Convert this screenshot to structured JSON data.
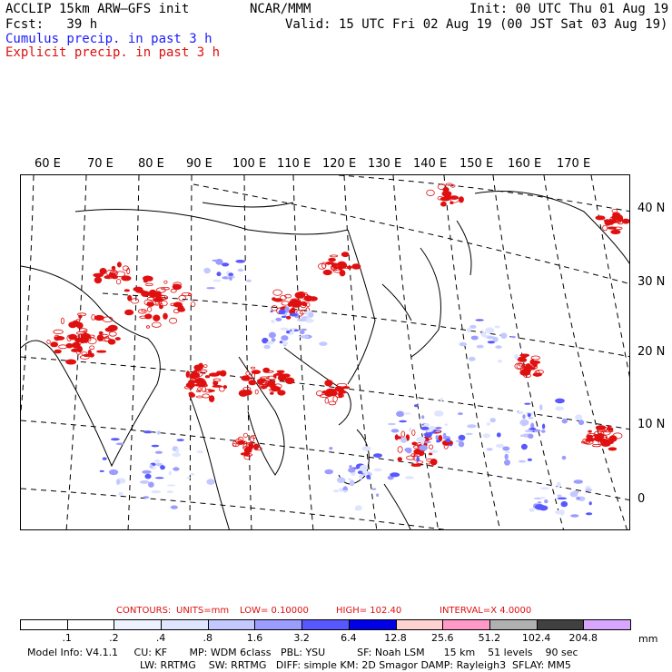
{
  "header": {
    "model_line": "ACCLIP 15km ARW–GFS init",
    "org": "NCAR/MMM",
    "init": "Init: 00 UTC Thu 01 Aug 19",
    "fcst": "Fcst:   39 h",
    "valid": "Valid: 15 UTC Fri 02 Aug 19 (00 JST Sat 03 Aug 19)",
    "cumulus": "Cumulus precip. in past 3 h",
    "explicit": "Explicit precip. in past 3 h"
  },
  "colors": {
    "cumulus": "#1a1aff",
    "explicit": "#e01010"
  },
  "map": {
    "lon_labels": [
      "60 E",
      "70 E",
      "80 E",
      "90 E",
      "100 E",
      "110 E",
      "120 E",
      "130 E",
      "140 E",
      "150 E",
      "160 E",
      "170 E"
    ],
    "lat_labels": [
      "40 N",
      "30 N",
      "20 N",
      "10 N",
      "0"
    ]
  },
  "contours": {
    "label": "CONTOURS:",
    "units": "UNITS=mm",
    "low": "LOW=  0.10000",
    "high": "HIGH=   102.40",
    "interval": "INTERVAL=X   4.0000"
  },
  "colorbar": {
    "thresholds": [
      ".1",
      ".2",
      ".4",
      ".8",
      "1.6",
      "3.2",
      "6.4",
      "12.8",
      "25.6",
      "51.2",
      "102.4",
      "204.8"
    ],
    "colors": [
      "#ffffff",
      "#ffffff",
      "#eef2ff",
      "#dfe5ff",
      "#c3c8ff",
      "#9c9cff",
      "#5858ff",
      "#0000e6",
      "#ffd2d2",
      "#ff99c8",
      "#b0b0b0",
      "#404040",
      "#d9a6ff"
    ],
    "unit": "mm"
  },
  "footer": {
    "line1": "Model Info: V4.1.1     CU: KF       MP: WDM 6class   PBL: YSU          SF: Noah LSM      15 km    51 levels    90 sec",
    "line2": "LW: RRTMG    SW: RRTMG   DIFF: simple KM: 2D Smagor DAMP: Rayleigh3  SFLAY: MM5"
  }
}
